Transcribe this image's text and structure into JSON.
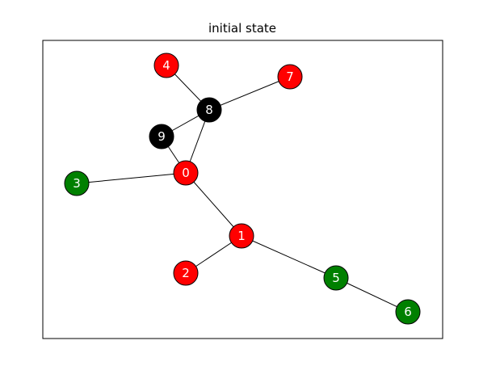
{
  "title": "initial state",
  "colors": {
    "red": "#ff0000",
    "green": "#008000",
    "black": "#000000",
    "edge": "#000000",
    "label": "#ffffff",
    "frame": "#000000"
  },
  "graph": {
    "nodes": [
      {
        "id": "0",
        "color": "red"
      },
      {
        "id": "1",
        "color": "red"
      },
      {
        "id": "2",
        "color": "red"
      },
      {
        "id": "3",
        "color": "green"
      },
      {
        "id": "4",
        "color": "red"
      },
      {
        "id": "5",
        "color": "green"
      },
      {
        "id": "6",
        "color": "green"
      },
      {
        "id": "7",
        "color": "red"
      },
      {
        "id": "8",
        "color": "black"
      },
      {
        "id": "9",
        "color": "black"
      }
    ],
    "edges": [
      [
        "4",
        "8"
      ],
      [
        "7",
        "8"
      ],
      [
        "8",
        "9"
      ],
      [
        "8",
        "0"
      ],
      [
        "9",
        "0"
      ],
      [
        "3",
        "0"
      ],
      [
        "0",
        "1"
      ],
      [
        "1",
        "2"
      ],
      [
        "1",
        "5"
      ],
      [
        "5",
        "6"
      ]
    ]
  }
}
